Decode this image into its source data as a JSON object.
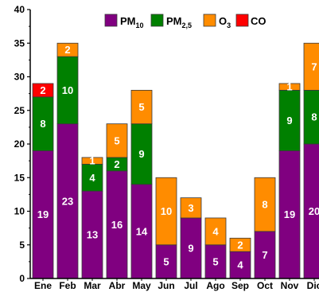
{
  "chart_data": {
    "type": "bar",
    "stacked": true,
    "title": "",
    "xlabel": "",
    "ylabel": "",
    "categories": [
      "Ene",
      "Feb",
      "Mar",
      "Abr",
      "May",
      "Jun",
      "Jul",
      "Ago",
      "Sep",
      "Oct",
      "Nov",
      "Dic"
    ],
    "ylim": [
      0,
      40
    ],
    "yticks": [
      0,
      5,
      10,
      15,
      20,
      25,
      30,
      35,
      40
    ],
    "grid": false,
    "legend_position": "top-right",
    "series": [
      {
        "name": "PM10",
        "label_main": "PM",
        "label_sub": "10",
        "color": "#800080",
        "values": [
          19,
          23,
          13,
          16,
          14,
          5,
          9,
          5,
          4,
          7,
          19,
          20
        ],
        "labels": [
          "19",
          "23",
          "13",
          "16",
          "14",
          "5",
          "9",
          "5",
          "4",
          "7",
          "19",
          "20"
        ]
      },
      {
        "name": "PM2,5",
        "label_main": "PM",
        "label_sub": "2,5",
        "color": "#008000",
        "values": [
          8,
          10,
          4,
          2,
          9,
          0,
          0,
          0,
          0,
          0,
          9,
          8
        ],
        "labels": [
          "8",
          "10",
          "4",
          "2",
          "9",
          "",
          "",
          "",
          "",
          "",
          "9",
          "8"
        ]
      },
      {
        "name": "O3",
        "label_main": "O",
        "label_sub": "3",
        "color": "#FF8C00",
        "values": [
          0,
          2,
          1,
          5,
          5,
          10,
          3,
          4,
          2,
          8,
          1,
          7
        ],
        "labels": [
          "",
          "2",
          "1",
          "5",
          "5",
          "10",
          "3",
          "4",
          "2",
          "8",
          "1",
          "7"
        ]
      },
      {
        "name": "CO",
        "label_main": "CO",
        "label_sub": "",
        "color": "#FF0000",
        "values": [
          2,
          0,
          0,
          0,
          0,
          0,
          0,
          0,
          0,
          0,
          0,
          0
        ],
        "labels": [
          "2",
          "",
          "",
          "",
          "",
          "",
          "",
          "",
          "",
          "",
          "",
          ""
        ]
      }
    ]
  }
}
